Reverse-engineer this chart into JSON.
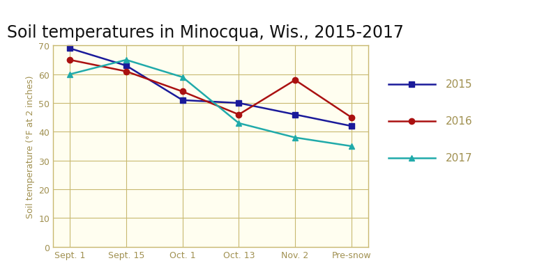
{
  "title": "Soil temperatures in Minocqua, Wis., 2015-2017",
  "title_bg_color": "#c8cdd8",
  "ylabel": "Soil temperature (°F at 2 inches)",
  "x_labels": [
    "Sept. 1",
    "Sept. 15",
    "Oct. 1",
    "Oct. 13",
    "Nov. 2",
    "Pre-snow"
  ],
  "ylim": [
    0,
    70
  ],
  "yticks": [
    0,
    10,
    20,
    30,
    40,
    50,
    60,
    70
  ],
  "series": [
    {
      "label": "2015",
      "values": [
        69,
        63,
        51,
        50,
        46,
        42
      ],
      "color": "#1a1a9a",
      "marker": "s",
      "linewidth": 1.8
    },
    {
      "label": "2016",
      "values": [
        65,
        61,
        54,
        46,
        58,
        45
      ],
      "color": "#aa1111",
      "marker": "o",
      "linewidth": 1.8
    },
    {
      "label": "2017",
      "values": [
        60,
        65,
        59,
        43,
        38,
        35
      ],
      "color": "#20aaaa",
      "marker": "^",
      "linewidth": 1.8
    }
  ],
  "grid_color": "#c8b870",
  "plot_bg_color": "#fffef0",
  "axis_color": "#c8b870",
  "tick_color": "#a09050",
  "ylabel_color": "#a09050",
  "legend_text_color": "#a09050",
  "ylabel_fontsize": 9,
  "title_fontsize": 17,
  "legend_fontsize": 11,
  "tick_label_fontsize": 9
}
